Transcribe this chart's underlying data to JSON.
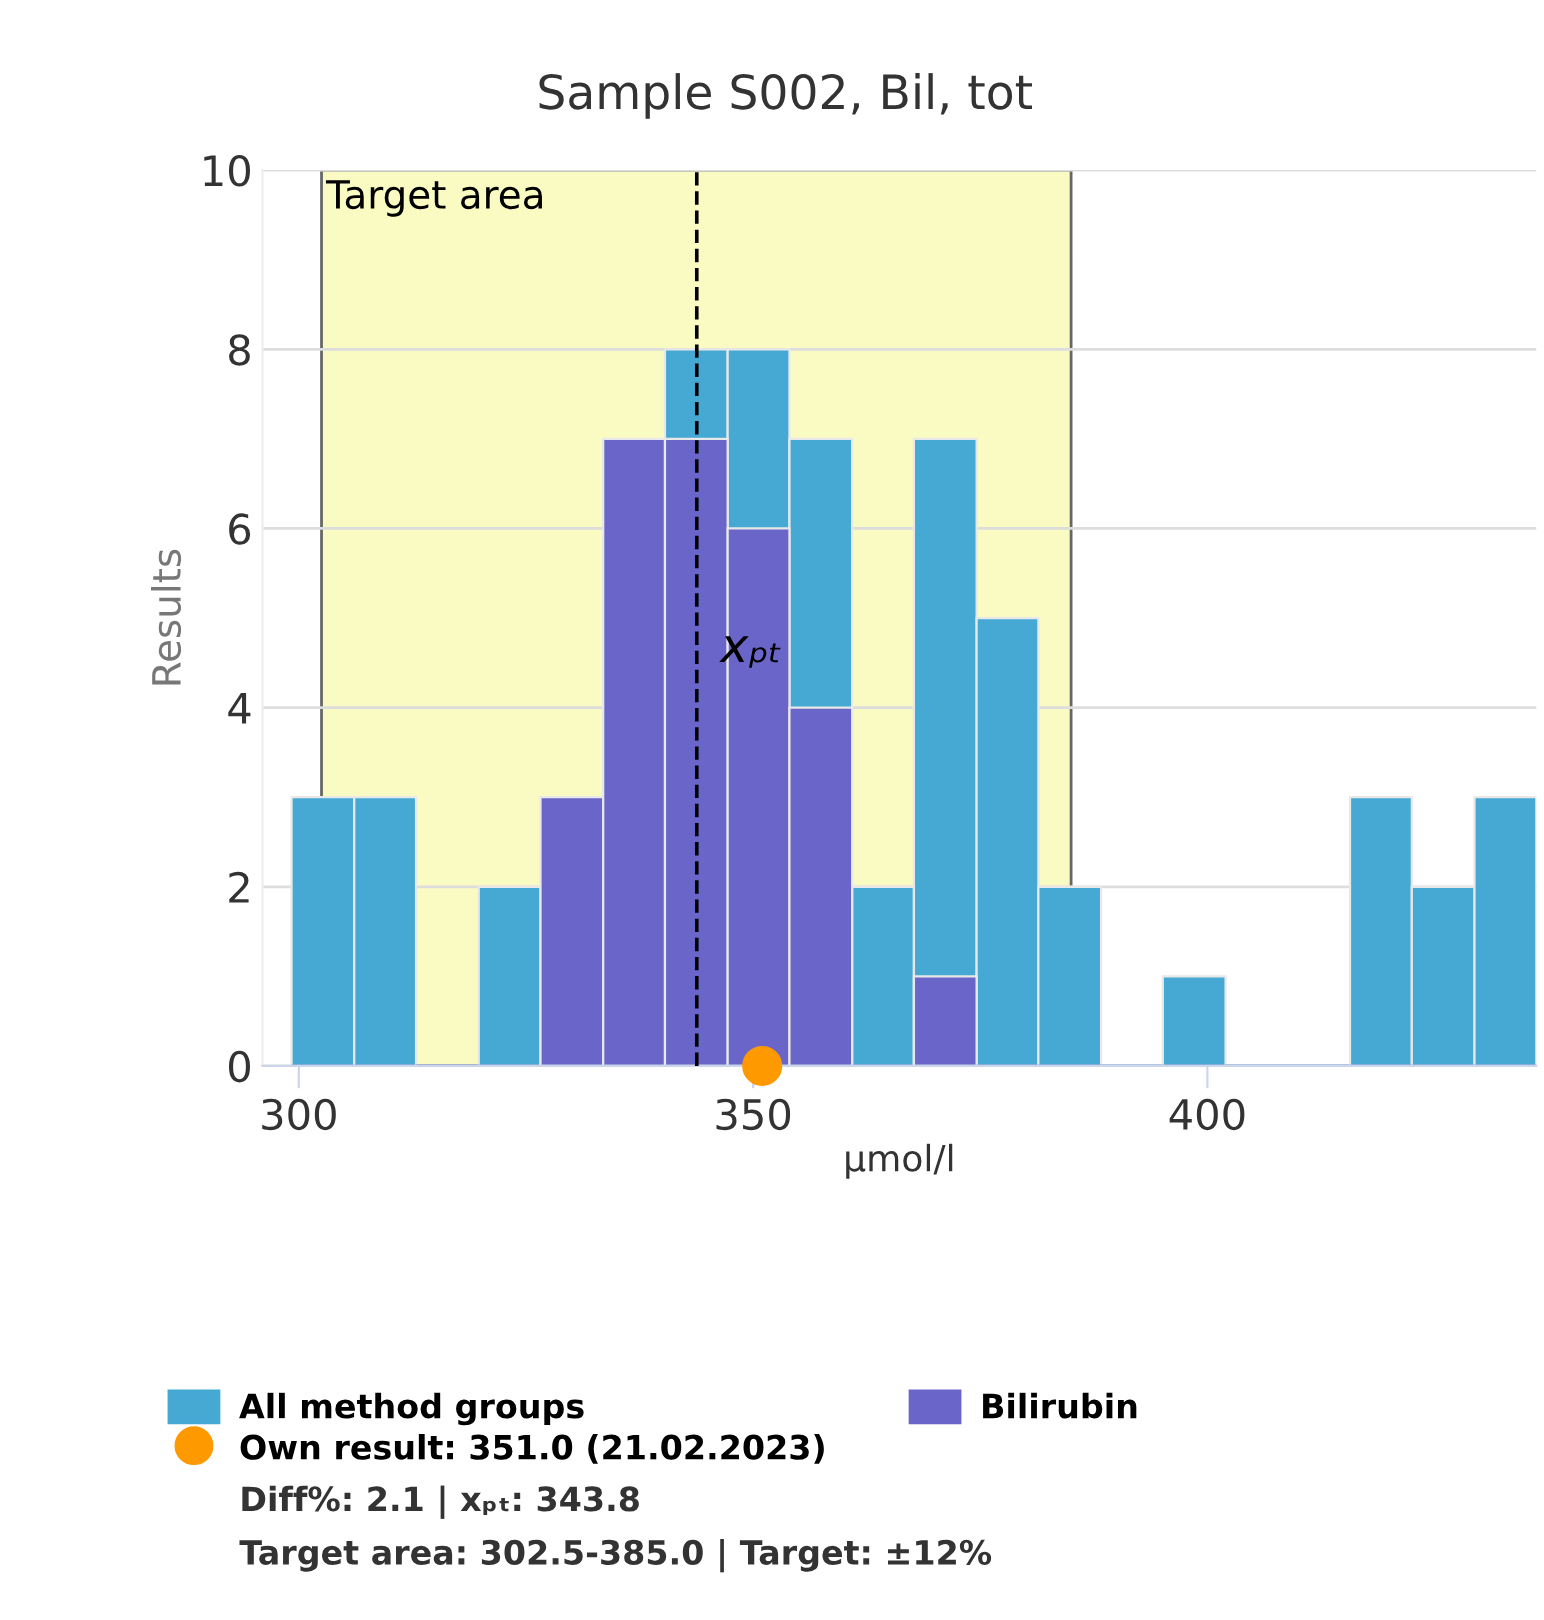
{
  "chart_data": {
    "type": "histogram",
    "title": "Sample S002, Bil, tot",
    "xlabel": "µmol/l",
    "ylabel": "Results",
    "bins": [
      299.2,
      306.1,
      312.9,
      319.8,
      326.6,
      333.5,
      340.3,
      347.2,
      354.0,
      360.9,
      367.7,
      374.6,
      381.4,
      388.3,
      395.1,
      402.0,
      408.8,
      415.7,
      422.5,
      429.4,
      436.2
    ],
    "series": [
      {
        "name": "All method groups",
        "color": "#45a9d4",
        "values": [
          3,
          3,
          0,
          2,
          null,
          null,
          8,
          8,
          7,
          2,
          7,
          5,
          2,
          0,
          1,
          0,
          0,
          3,
          2,
          3
        ]
      },
      {
        "name": "Bilirubin",
        "color": "#6a66c9",
        "values": [
          0,
          0,
          0,
          0,
          3,
          7,
          7,
          6,
          4,
          0,
          1,
          0,
          0,
          0,
          0,
          0,
          0,
          0,
          0,
          0
        ]
      },
      {
        "name": "Own result: 351.0 (21.02.2023)",
        "type": "scatter",
        "color": "#ff9900",
        "x": [
          351.0
        ],
        "values": [
          0
        ]
      }
    ],
    "xlim": [
      296,
      436.2
    ],
    "xticks": [
      300,
      350,
      400
    ],
    "ylim": [
      0,
      10
    ],
    "yticks": [
      0,
      2,
      4,
      6,
      8,
      10
    ],
    "grid": "y",
    "legend": "bottom",
    "marker": "circle",
    "bands": [
      {
        "axis": "x",
        "from": 302.5,
        "to": 385.0,
        "label": "Target area",
        "color": "#fafbc2"
      }
    ],
    "ref_lines": [
      {
        "axis": "x",
        "value": 343.8,
        "label": "xₚₜ",
        "line_style": "dashed",
        "color": "#000000"
      }
    ],
    "annotations": [
      "Diff%: 2.1 | xₚₜ: 343.8",
      "Target area: 302.5-385.0 | Target: ±12%"
    ]
  }
}
